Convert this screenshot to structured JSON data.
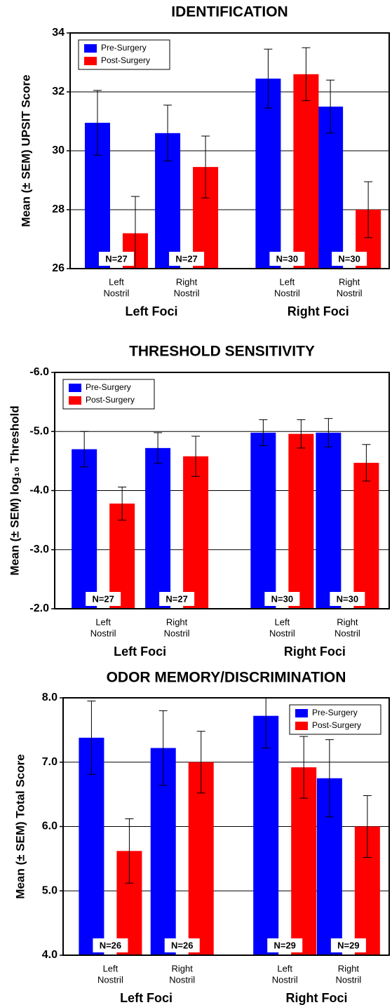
{
  "chart_data": [
    {
      "type": "bar",
      "title": "IDENTIFICATION",
      "y_label": "Mean (± SEM) UPSIT Score",
      "categories": [
        [
          "Left",
          "Nostril"
        ],
        [
          "Right",
          "Nostril"
        ],
        [
          "Left",
          "Nostril"
        ],
        [
          "Right",
          "Nostril"
        ]
      ],
      "groups": [
        "Left Foci",
        "Right Foci"
      ],
      "n_labels": [
        "N=27",
        "N=27",
        "N=30",
        "N=30"
      ],
      "series": [
        {
          "name": "Pre-Surgery",
          "color": "#0000ff",
          "values": [
            30.95,
            30.6,
            32.45,
            31.5
          ],
          "errors": [
            1.1,
            0.95,
            1.0,
            0.9
          ]
        },
        {
          "name": "Post-Surgery",
          "color": "#ff0000",
          "values": [
            27.2,
            29.45,
            32.6,
            28.0
          ],
          "errors": [
            1.25,
            1.05,
            0.9,
            0.95
          ]
        }
      ],
      "ylim": [
        26,
        34
      ],
      "yticks": [
        26,
        28,
        30,
        32,
        34
      ],
      "grid": true,
      "legend": "top-left"
    },
    {
      "type": "bar",
      "title": "THRESHOLD SENSITIVITY",
      "y_label": "Mean (± SEM) log₁₀  Threshold",
      "categories": [
        [
          "Left",
          "Nostril"
        ],
        [
          "Right",
          "Nostril"
        ],
        [
          "Left",
          "Nostril"
        ],
        [
          "Right",
          "Nostril"
        ]
      ],
      "groups": [
        "Left Foci",
        "Right Foci"
      ],
      "n_labels": [
        "N=27",
        "N=27",
        "N=30",
        "N=30"
      ],
      "series": [
        {
          "name": "Pre-Surgery",
          "color": "#0000ff",
          "values": [
            -4.7,
            -4.72,
            -4.98,
            -4.98
          ],
          "errors": [
            0.3,
            0.26,
            0.22,
            0.24
          ]
        },
        {
          "name": "Post-Surgery",
          "color": "#ff0000",
          "values": [
            -3.78,
            -4.58,
            -4.96,
            -4.47
          ],
          "errors": [
            0.28,
            0.34,
            0.24,
            0.31
          ]
        }
      ],
      "ylim": [
        -2,
        -6
      ],
      "yticks": [
        {
          "value": -2,
          "label": "-2.0"
        },
        {
          "value": -3,
          "label": "-3.0"
        },
        {
          "value": -4,
          "label": "-4.0"
        },
        {
          "value": -5,
          "label": "-5.0"
        },
        {
          "value": -6,
          "label": "-6.0"
        }
      ],
      "grid": true,
      "legend": "top-left"
    },
    {
      "type": "bar",
      "title": "ODOR MEMORY/DISCRIMINATION",
      "y_label": "Mean (± SEM) Total Score",
      "categories": [
        [
          "Left",
          "Nostril"
        ],
        [
          "Right",
          "Nostril"
        ],
        [
          "Left",
          "Nostril"
        ],
        [
          "Right",
          "Nostril"
        ]
      ],
      "groups": [
        "Left Foci",
        "Right Foci"
      ],
      "n_labels": [
        "N=26",
        "N=26",
        "N=29",
        "N=29"
      ],
      "series": [
        {
          "name": "Pre-Surgery",
          "color": "#0000ff",
          "values": [
            7.38,
            7.22,
            7.72,
            6.75
          ],
          "errors": [
            0.57,
            0.58,
            0.5,
            0.6
          ]
        },
        {
          "name": "Post-Surgery",
          "color": "#ff0000",
          "values": [
            5.62,
            7.0,
            6.92,
            6.0
          ],
          "errors": [
            0.5,
            0.48,
            0.48,
            0.48
          ]
        }
      ],
      "ylim": [
        4,
        8
      ],
      "yticks": [
        {
          "value": 4,
          "label": "4.0"
        },
        {
          "value": 5,
          "label": "5.0"
        },
        {
          "value": 6,
          "label": "6.0"
        },
        {
          "value": 7,
          "label": "7.0"
        },
        {
          "value": 8,
          "label": "8.0"
        }
      ],
      "grid": true,
      "legend": "top-right"
    }
  ]
}
